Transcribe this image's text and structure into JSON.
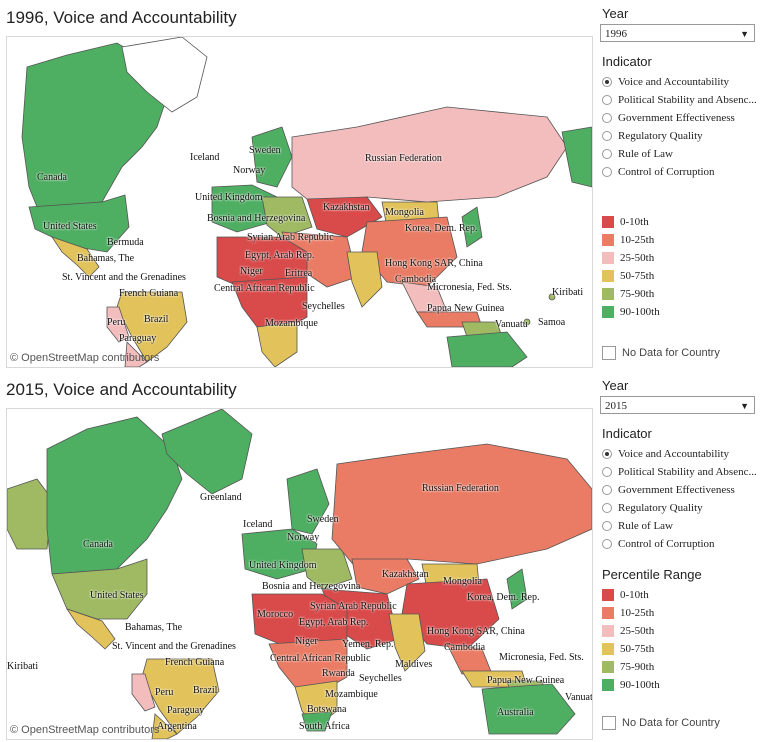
{
  "colors": {
    "p0_10": "#d94a4a",
    "p10_25": "#ea7b64",
    "p25_50": "#f3bdbd",
    "p50_75": "#e2c25a",
    "p75_90": "#9fba63",
    "p90_100": "#4eae62",
    "nodata": "#ffffff"
  },
  "attribution": "© OpenStreetMap contributors",
  "year_label": "Year",
  "indicator_label": "Indicator",
  "percentile_label": "Percentile Range",
  "no_data_label": "No Data for Country",
  "indicators": [
    "Voice and Accountability",
    "Political Stability and Absenc...",
    "Government Effectiveness",
    "Regulatory Quality",
    "Rule of Law",
    "Control of Corruption"
  ],
  "legend": [
    "0-10th",
    "10-25th",
    "25-50th",
    "50-75th",
    "75-90th",
    "90-100th"
  ],
  "top": {
    "title": "1996, Voice and Accountability",
    "year": "1996",
    "labels": [
      "Canada",
      "Iceland",
      "Sweden",
      "Norway",
      "Russian Federation",
      "United Kingdom",
      "Bosnia and Herzegovina",
      "Kazakhstan",
      "Mongolia",
      "United States",
      "Syrian Arab Republic",
      "Korea, Dem. Rep.",
      "Bermuda",
      "Egypt, Arab Rep.",
      "Bahamas, The",
      "Hong Kong SAR, China",
      "Niger",
      "Eritrea",
      "Cambodia",
      "St. Vincent and the Grenadines",
      "Central African Republic",
      "Micronesia, Fed. Sts.",
      "French Guiana",
      "Seychelles",
      "Kiribati",
      "Papua New Guinea",
      "Peru",
      "Brazil",
      "Vanuatu",
      "Samoa",
      "Mozambique",
      "Paraguay"
    ]
  },
  "bottom": {
    "title": "2015, Voice and Accountability",
    "year": "2015",
    "labels": [
      "Greenland",
      "Russian Federation",
      "Iceland",
      "Sweden",
      "Norway",
      "Canada",
      "United Kingdom",
      "Kazakhstan",
      "Bosnia and Herzegovina",
      "Mongolia",
      "United States",
      "Syrian Arab Republic",
      "Korea, Dem. Rep.",
      "Morocco",
      "Egypt, Arab Rep.",
      "Bahamas, The",
      "Hong Kong SAR, China",
      "Niger",
      "Yemen, Rep.",
      "St. Vincent and the Grenadines",
      "Cambodia",
      "Central African Republic",
      "Micronesia, Fed. Sts.",
      "French Guiana",
      "Kiribati",
      "Maldives",
      "Rwanda",
      "Seychelles",
      "Papua New Guinea",
      "Peru",
      "Brazil",
      "Vanuatu",
      "Mozambique",
      "Paraguay",
      "Botswana",
      "Australia",
      "Argentina",
      "South Africa"
    ]
  }
}
